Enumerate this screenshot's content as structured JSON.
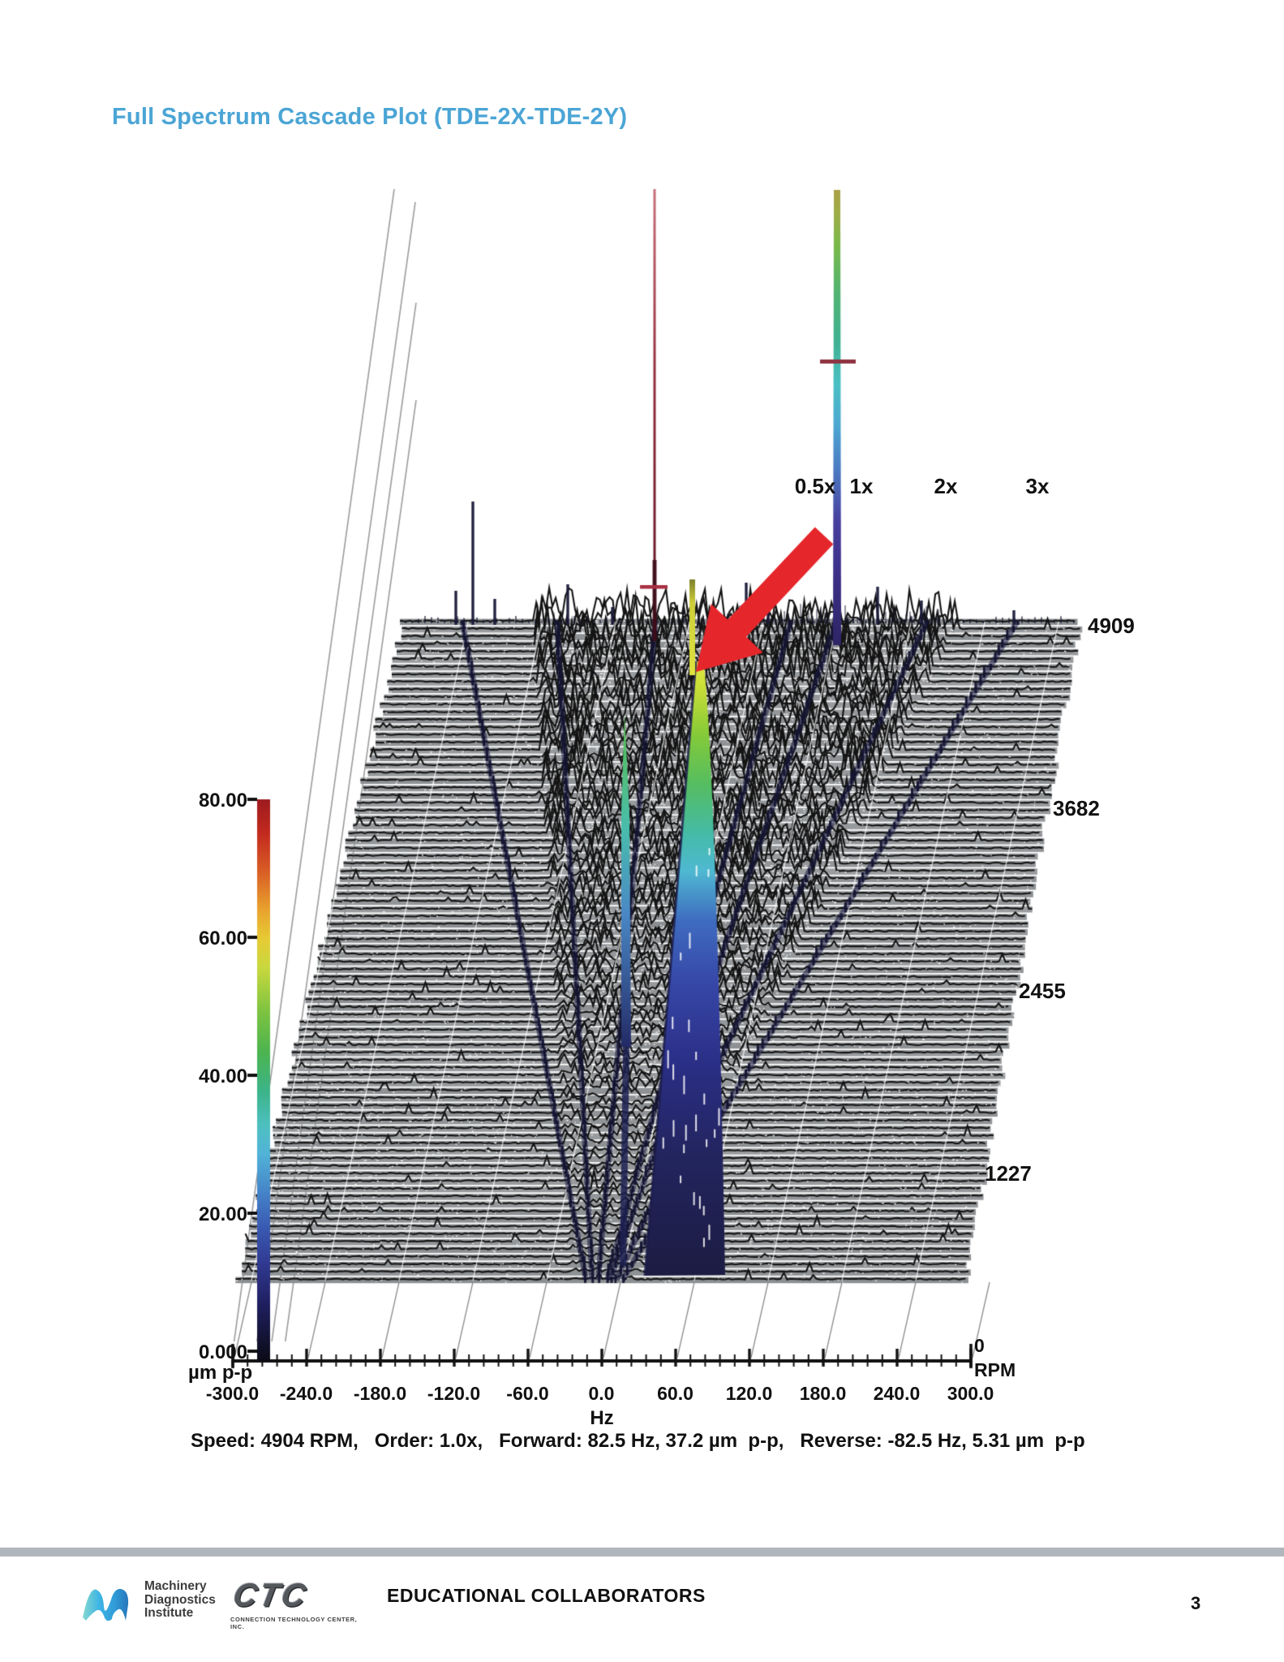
{
  "page": {
    "title": "Full Spectrum Cascade Plot (TDE-2X-TDE-2Y)",
    "page_number": "3"
  },
  "chart_data": {
    "type": "cascade_spectrum_waterfall",
    "title": "Full Spectrum Cascade Plot (TDE-2X-TDE-2Y)",
    "xlabel": "Hz",
    "x_range_hz": [
      -300,
      300
    ],
    "x_ticks": [
      "-300.0",
      "-240.0",
      "-180.0",
      "-120.0",
      "-60.0",
      "0.0",
      "60.0",
      "120.0",
      "180.0",
      "240.0",
      "300.0"
    ],
    "amplitude_axis": {
      "unit_label": "µm p-p",
      "ticks": [
        "0.000",
        "20.00",
        "40.00",
        "60.00",
        "80.00"
      ],
      "ticks_top_down": [
        "80.00",
        "60.00",
        "40.00",
        "20.00",
        "0.000"
      ],
      "range": [
        0,
        80
      ]
    },
    "rpm_axis": {
      "label": "RPM",
      "origin_label": "0",
      "tick_labels_top_down": [
        "4909",
        "3682",
        "2455",
        "1227"
      ],
      "range": [
        0,
        4909
      ]
    },
    "order_labels": [
      "0.5x",
      "1x",
      "2x",
      "3x"
    ],
    "peaks": [
      {
        "label": "forward 1x",
        "freq_hz": 82.5,
        "amplitude_um_pp": 37.2
      },
      {
        "label": "reverse 1x",
        "freq_hz": -82.5,
        "amplitude_um_pp": 5.31
      }
    ],
    "cursor_readout": {
      "speed": "4904 RPM",
      "order": "1.0x",
      "forward": "82.5 Hz, 37.2 µm p-p",
      "reverse": "-82.5 Hz, 5.31 µm p-p"
    },
    "caption": "Speed: 4904 RPM,   Order: 1.0x,   Forward: 82.5 Hz, 37.2 µm  p-p,   Reverse: -82.5 Hz, 5.31 µm  p-p",
    "annotation": "red arrow pointing at forward subsynchronous peak column",
    "layout": {
      "legend": "none",
      "grid": "perspective skewed grid",
      "colormap": "jet 0-80 µm p-p"
    },
    "colors": {
      "title_blue": "#4ba5d5",
      "arrow_red": "#e5262b",
      "trace_navy": "#171740",
      "crosshair_maroon": "#a93043",
      "footer_bar_gray": "#b1b6bd"
    }
  },
  "footer": {
    "mdi_logo_lines": [
      "Machinery",
      "Diagnostics",
      "Institute"
    ],
    "ctc_logo_text": "CTC",
    "ctc_logo_subtext": "CONNECTION TECHNOLOGY CENTER, INC.",
    "collaborators_text": "EDUCATIONAL COLLABORATORS"
  }
}
